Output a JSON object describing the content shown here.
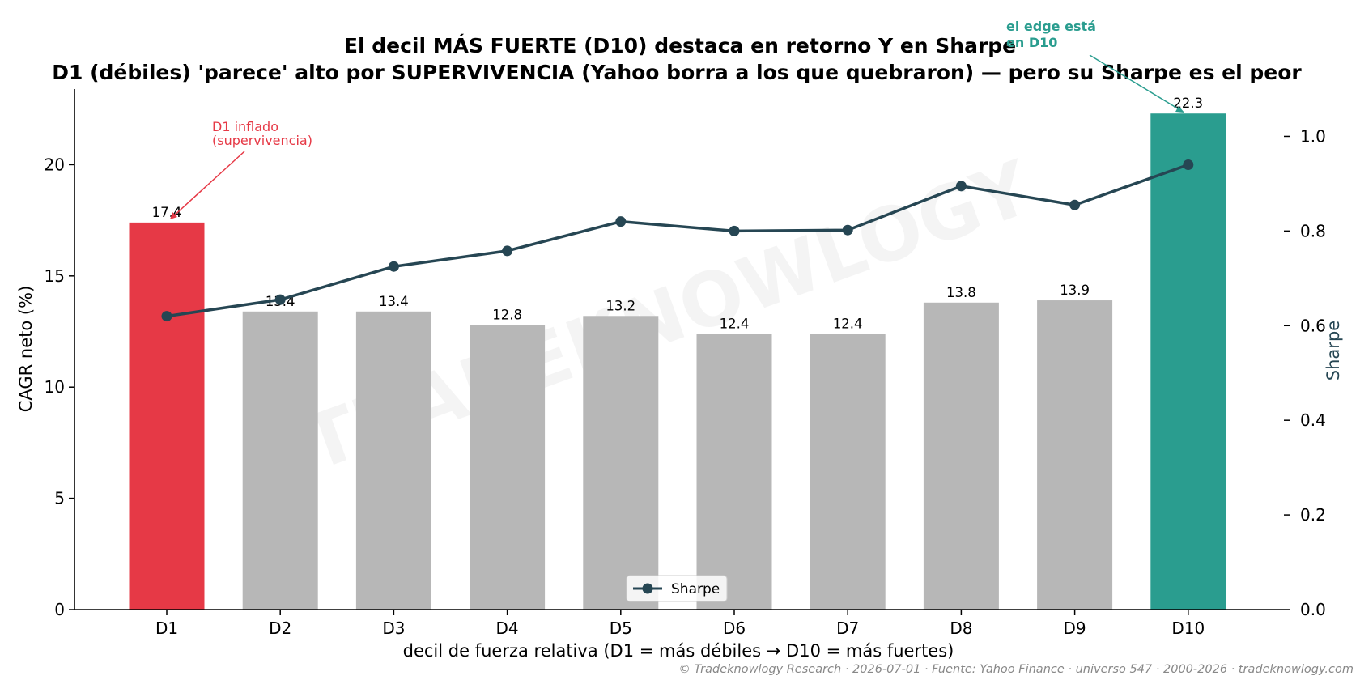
{
  "chart_data": {
    "type": "bar",
    "title_line1": "El decil MÁS FUERTE (D10) destaca en retorno Y en Sharpe",
    "title_line2": "D1 (débiles) 'parece' alto por SUPERVIVENCIA (Yahoo borra a los que quebraron) — pero su Sharpe es el peor",
    "xlabel": "decil de fuerza relativa (D1 = más débiles → D10 = más fuertes)",
    "ylabel": "CAGR neto (%)",
    "y2label": "Sharpe",
    "categories": [
      "D1",
      "D2",
      "D3",
      "D4",
      "D5",
      "D6",
      "D7",
      "D8",
      "D9",
      "D10"
    ],
    "values": [
      17.4,
      13.4,
      13.4,
      12.8,
      13.2,
      12.4,
      12.4,
      13.8,
      13.9,
      22.3
    ],
    "value_labels": [
      "17.4",
      "13.4",
      "13.4",
      "12.8",
      "13.2",
      "12.4",
      "12.4",
      "13.8",
      "13.9",
      "22.3"
    ],
    "bar_colors": [
      "#e63946",
      "#b7b7b7",
      "#b7b7b7",
      "#b7b7b7",
      "#b7b7b7",
      "#b7b7b7",
      "#b7b7b7",
      "#b7b7b7",
      "#b7b7b7",
      "#2a9d8f"
    ],
    "ylim": [
      0,
      23.4
    ],
    "yticks": [
      "0",
      "5",
      "10",
      "15",
      "20"
    ],
    "ytick_values": [
      0,
      5,
      10,
      15,
      20
    ],
    "y2lim": [
      0,
      1.1
    ],
    "y2ticks": [
      "0.0",
      "0.2",
      "0.4",
      "0.6",
      "0.8",
      "1.0"
    ],
    "y2tick_values": [
      0,
      0.2,
      0.4,
      0.6,
      0.8,
      1.0
    ],
    "series": [
      {
        "name": "Sharpe",
        "axis": "right",
        "type": "line",
        "color": "#264653",
        "values": [
          0.62,
          0.655,
          0.725,
          0.758,
          0.82,
          0.8,
          0.802,
          0.895,
          0.855,
          0.94
        ]
      }
    ],
    "legend": {
      "label": "Sharpe",
      "position": "lower center"
    },
    "annotations": [
      {
        "line1": "D1 inflado",
        "line2": "(supervivencia)",
        "target": "D1",
        "target_value": 17.4,
        "color": "#e63946"
      },
      {
        "line1": "el edge está",
        "line2": "en D10",
        "target": "D10",
        "target_value": 22.3,
        "color": "#2a9d8f"
      }
    ],
    "watermark": "TRADEKNOWLOGY",
    "footer": "© Tradeknowlogy Research   ·   2026-07-01   ·   Fuente: Yahoo Finance · universo 547 · 2000-2026   ·   tradeknowlogy.com",
    "grid": false
  }
}
